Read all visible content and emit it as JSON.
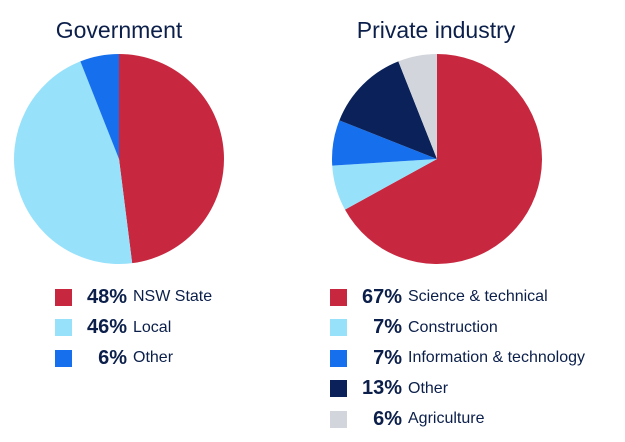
{
  "chart_data": [
    {
      "type": "pie",
      "title": "Government",
      "start_angle_deg": 0,
      "direction": "clockwise",
      "slices": [
        {
          "label": "NSW State",
          "value": 48,
          "value_label": "48%",
          "color": "#c8283f"
        },
        {
          "label": "Local",
          "value": 46,
          "value_label": "46%",
          "color": "#97e1fb"
        },
        {
          "label": "Other",
          "value": 6,
          "value_label": "6%",
          "color": "#1670ee"
        }
      ],
      "legend_position": "bottom"
    },
    {
      "type": "pie",
      "title": "Private industry",
      "start_angle_deg": 0,
      "direction": "clockwise",
      "slices": [
        {
          "label": "Science & technical",
          "value": 67,
          "value_label": "67%",
          "color": "#c8283f"
        },
        {
          "label": "Construction",
          "value": 7,
          "value_label": "7%",
          "color": "#97e1fb"
        },
        {
          "label": "Information & technology",
          "value": 7,
          "value_label": "7%",
          "color": "#1670ee"
        },
        {
          "label": "Other",
          "value": 13,
          "value_label": "13%",
          "color": "#0a2259"
        },
        {
          "label": "Agriculture",
          "value": 6,
          "value_label": "6%",
          "color": "#d2d6dc"
        }
      ],
      "legend_position": "bottom"
    }
  ]
}
